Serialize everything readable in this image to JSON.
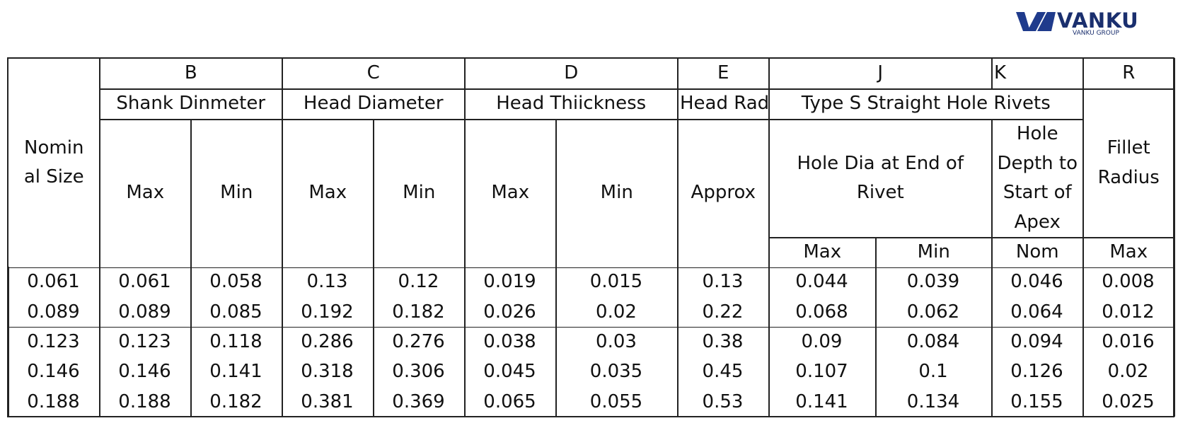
{
  "logo": {
    "brand": "VANKU",
    "sub": "VANKU GROUP"
  },
  "table": {
    "header": [
      "Nominal Size",
      "B",
      "C",
      "D",
      "E",
      "J",
      "K",
      "R",
      "Shank Dinmeter",
      "Head Diameter",
      "Head Thiickness",
      "Head Radius",
      "Type S Straight Hole Rivets",
      "Fillet Radius",
      "Max",
      "Min",
      "Max",
      "Min",
      "Max",
      "Min",
      "Approx",
      "Hole Dia at End of Rivet",
      "Hole Depth to Start of Apex",
      "Max",
      "Min",
      "Nom",
      "Max"
    ],
    "rows": [
      [
        0.061,
        0.061,
        0.058,
        0.13,
        0.12,
        0.019,
        0.015,
        0.13,
        0.044,
        0.039,
        0.046,
        0.008
      ],
      [
        0.089,
        0.089,
        0.085,
        0.192,
        0.182,
        0.026,
        0.02,
        0.22,
        0.068,
        0.062,
        0.064,
        0.012
      ],
      [
        0.123,
        0.123,
        0.118,
        0.286,
        0.276,
        0.038,
        0.03,
        0.38,
        0.09,
        0.084,
        0.094,
        0.016
      ],
      [
        0.146,
        0.146,
        0.141,
        0.318,
        0.306,
        0.045,
        0.035,
        0.45,
        0.107,
        0.1,
        0.126,
        0.02
      ],
      [
        0.188,
        0.188,
        0.182,
        0.381,
        0.369,
        0.065,
        0.055,
        0.53,
        0.141,
        0.134,
        0.155,
        0.025
      ]
    ]
  }
}
